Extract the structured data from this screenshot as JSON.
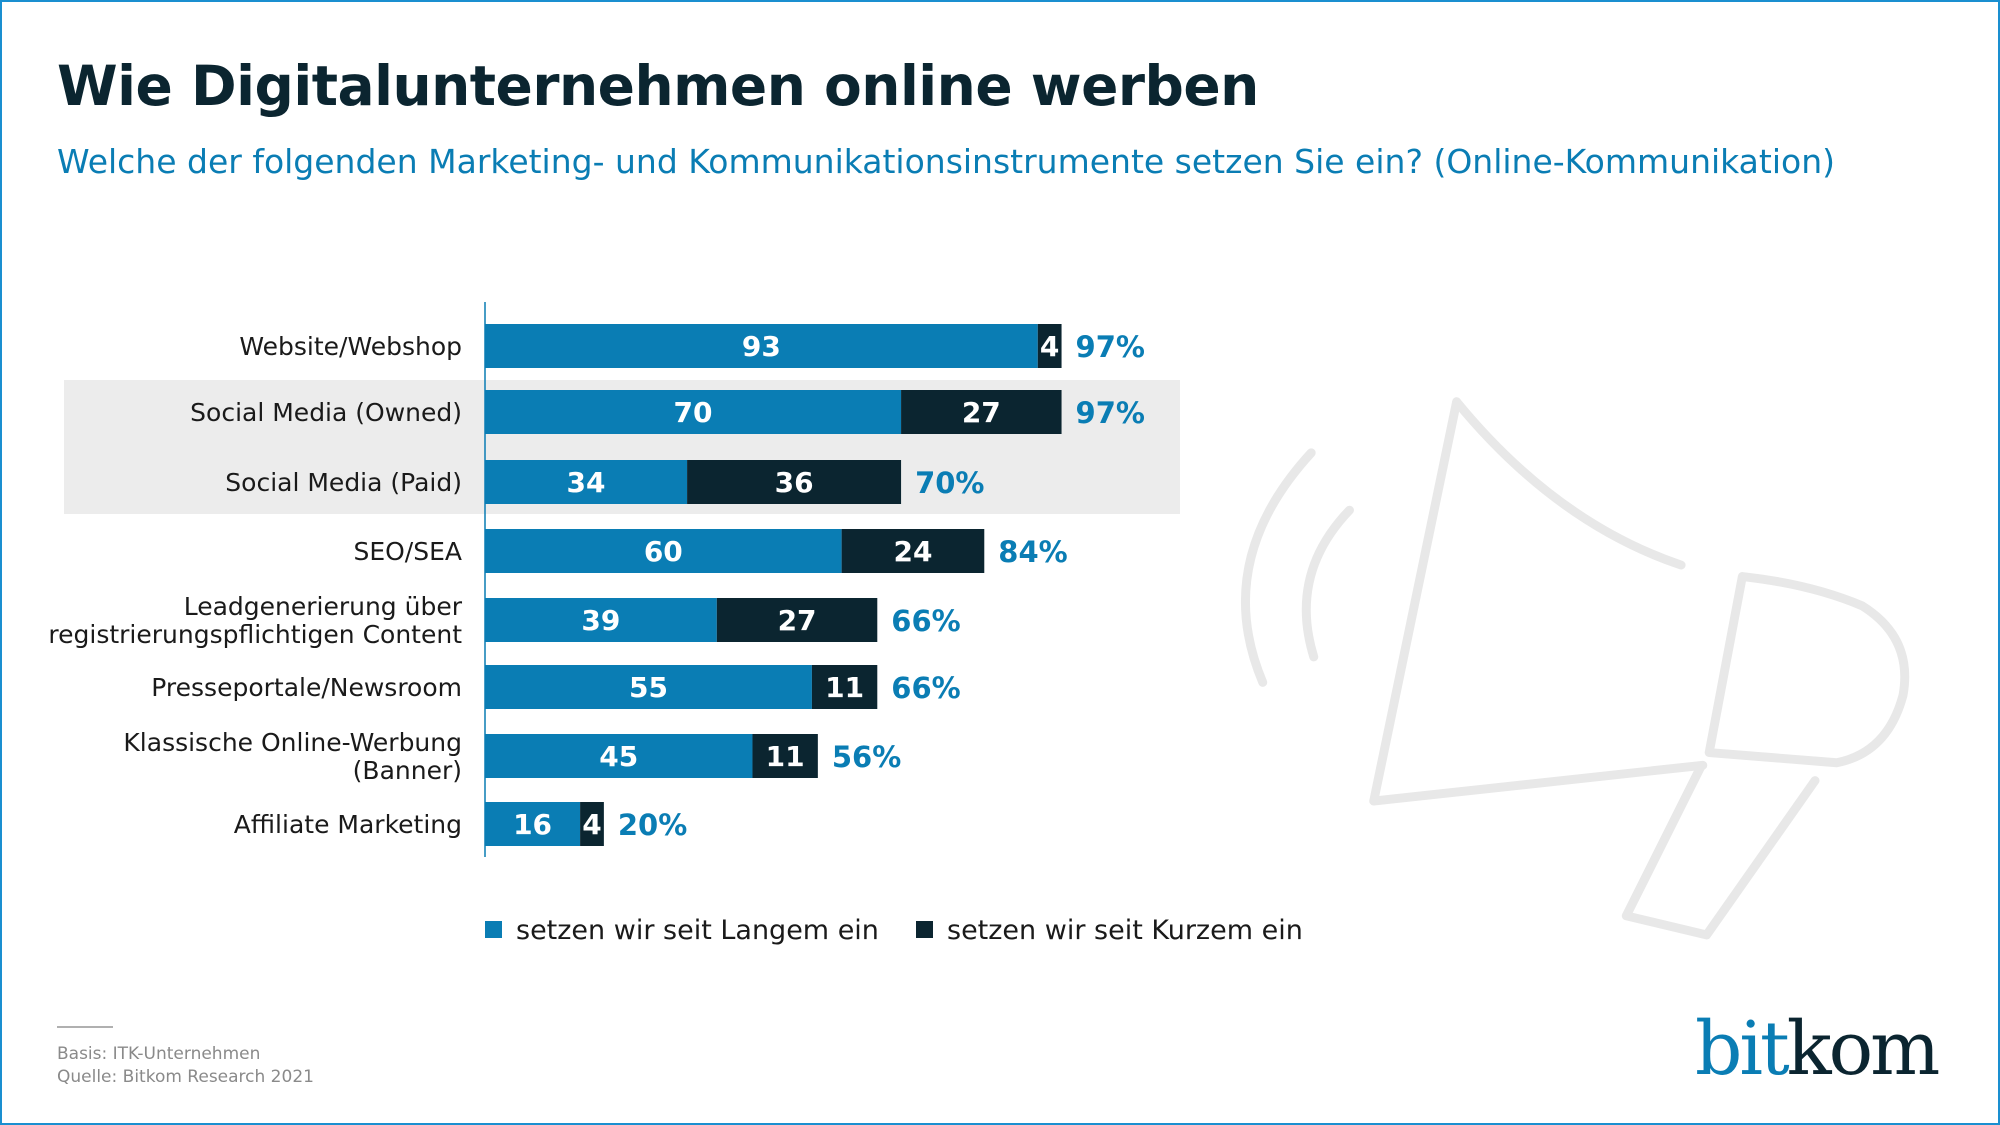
{
  "header": {
    "title": "Wie Digitalunternehmen online werben",
    "subtitle": "Welche der folgenden Marketing- und Kommunikationsinstrumente setzen Sie ein? (Online-Kommunikation)"
  },
  "chart_data": {
    "type": "bar",
    "orientation": "horizontal",
    "stacked": true,
    "categories": [
      "Website/Webshop",
      "Social Media (Owned)",
      "Social Media (Paid)",
      "SEO/SEA",
      "Leadgenerierung über registrierungspflichtigen Content",
      "Presseportale/Newsroom",
      "Klassische Online-Werbung (Banner)",
      "Affiliate Marketing"
    ],
    "category_lines": [
      [
        "Website/Webshop"
      ],
      [
        "Social Media (Owned)"
      ],
      [
        "Social Media (Paid)"
      ],
      [
        "SEO/SEA"
      ],
      [
        "Leadgenerierung über",
        "registrierungspflichtigen Content"
      ],
      [
        "Presseportale/Newsroom"
      ],
      [
        "Klassische Online-Werbung",
        "(Banner)"
      ],
      [
        "Affiliate Marketing"
      ]
    ],
    "series": [
      {
        "name": "setzen wir seit Langem ein",
        "color": "#0a7db4",
        "values": [
          93,
          70,
          34,
          60,
          39,
          55,
          45,
          16
        ]
      },
      {
        "name": "setzen wir seit Kurzem ein",
        "color": "#0b2530",
        "values": [
          4,
          27,
          36,
          24,
          27,
          11,
          11,
          4
        ]
      }
    ],
    "totals": [
      "97%",
      "97%",
      "70%",
      "84%",
      "66%",
      "66%",
      "56%",
      "20%"
    ],
    "highlighted_categories": [
      "Social Media (Owned)",
      "Social Media (Paid)"
    ],
    "xlim": [
      0,
      100
    ],
    "unit": "%",
    "grid": false,
    "legend_position": "bottom"
  },
  "footer": {
    "basis": "Basis: ITK-Unternehmen",
    "source": "Quelle: Bitkom Research 2021"
  },
  "logo": {
    "part1": "bit",
    "part2": "kom"
  },
  "colors": {
    "accent": "#0a7db4",
    "dark": "#0b2530",
    "highlight": "#ececec",
    "decor": "#e8e8e8"
  }
}
